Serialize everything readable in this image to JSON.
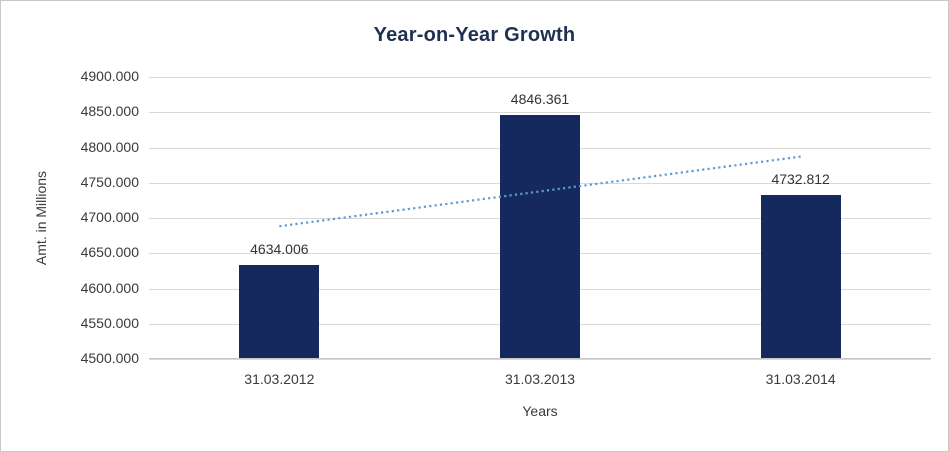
{
  "chart_data": {
    "type": "bar",
    "title": "Year-on-Year Growth",
    "xlabel": "Years",
    "ylabel": "Amt. in Millions",
    "categories": [
      "31.03.2012",
      "31.03.2013",
      "31.03.2014"
    ],
    "values": [
      4634.006,
      4846.361,
      4732.812
    ],
    "value_labels": [
      "4634.006",
      "4846.361",
      "4732.812"
    ],
    "ylim": [
      4500,
      4900
    ],
    "ytick_step": 50,
    "ytick_labels": [
      "4500.000",
      "4550.000",
      "4600.000",
      "4650.000",
      "4700.000",
      "4750.000",
      "4800.000",
      "4850.000",
      "4900.000"
    ],
    "grid": true,
    "legend": "none",
    "bar_color": "#16295f",
    "title_color": "#1f3150",
    "axis_text_color": "#3a3a3a",
    "gridline_color": "#d9d9d9",
    "trendline": {
      "type": "linear",
      "style": "dotted",
      "color": "#5b9bd5",
      "start_value": 4688.3,
      "end_value": 4787.1
    }
  }
}
